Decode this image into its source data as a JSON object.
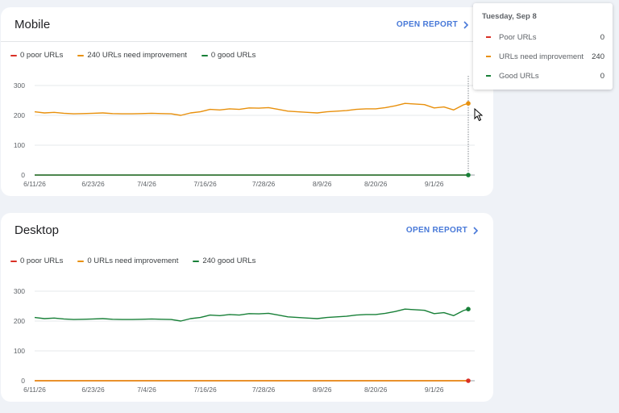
{
  "colors": {
    "poor": "#d93025",
    "needs_improvement": "#e8900c",
    "good": "#188038",
    "link": "#4778d8"
  },
  "open_report_label": "OPEN REPORT",
  "mobile": {
    "title": "Mobile",
    "legend": {
      "poor": "0 poor URLs",
      "needs_improvement": "240 URLs need improvement",
      "good": "0 good URLs"
    }
  },
  "desktop": {
    "title": "Desktop",
    "legend": {
      "poor": "0 poor URLs",
      "needs_improvement": "0 URLs need improvement",
      "good": "240 good URLs"
    }
  },
  "tooltip": {
    "date": "Tuesday, Sep 8",
    "rows": [
      {
        "label": "Poor URLs",
        "value": "0"
      },
      {
        "label": "URLs need improvement",
        "value": "240"
      },
      {
        "label": "Good URLs",
        "value": "0"
      }
    ]
  },
  "chart_data": [
    {
      "type": "line",
      "panel": "Mobile",
      "ylim": [
        0,
        300
      ],
      "yticks": [
        "300",
        "200",
        "100",
        "0"
      ],
      "xtick_labels": [
        "6/11/26",
        "6/23/26",
        "7/4/26",
        "7/16/26",
        "7/28/26",
        "8/9/26",
        "8/20/26",
        "9/1/26"
      ],
      "x": [
        "6/11/26",
        "6/13/26",
        "6/15/26",
        "6/17/26",
        "6/19/26",
        "6/21/26",
        "6/23/26",
        "6/25/26",
        "6/27/26",
        "6/29/26",
        "7/1/26",
        "7/3/26",
        "7/5/26",
        "7/7/26",
        "7/9/26",
        "7/11/26",
        "7/13/26",
        "7/15/26",
        "7/17/26",
        "7/19/26",
        "7/21/26",
        "7/23/26",
        "7/25/26",
        "7/27/26",
        "7/29/26",
        "7/31/26",
        "8/2/26",
        "8/4/26",
        "8/6/26",
        "8/8/26",
        "8/10/26",
        "8/12/26",
        "8/14/26",
        "8/16/26",
        "8/18/26",
        "8/20/26",
        "8/22/26",
        "8/24/26",
        "8/26/26",
        "8/28/26",
        "8/30/26",
        "9/1/26",
        "9/3/26",
        "9/5/26",
        "9/7/26",
        "9/8/26"
      ],
      "series": [
        {
          "name": "Poor URLs",
          "color": "#d93025",
          "values": [
            0,
            0,
            0,
            0,
            0,
            0,
            0,
            0,
            0,
            0,
            0,
            0,
            0,
            0,
            0,
            0,
            0,
            0,
            0,
            0,
            0,
            0,
            0,
            0,
            0,
            0,
            0,
            0,
            0,
            0,
            0,
            0,
            0,
            0,
            0,
            0,
            0,
            0,
            0,
            0,
            0,
            0,
            0,
            0,
            0,
            0
          ]
        },
        {
          "name": "URLs need improvement",
          "color": "#e8900c",
          "values": [
            212,
            208,
            210,
            207,
            205,
            206,
            207,
            208,
            206,
            205,
            205,
            206,
            207,
            206,
            205,
            200,
            208,
            212,
            220,
            218,
            222,
            220,
            225,
            224,
            226,
            220,
            214,
            212,
            210,
            208,
            212,
            214,
            216,
            220,
            222,
            222,
            226,
            232,
            240,
            238,
            236,
            225,
            228,
            218,
            235,
            240
          ]
        },
        {
          "name": "Good URLs",
          "color": "#188038",
          "values": [
            0,
            0,
            0,
            0,
            0,
            0,
            0,
            0,
            0,
            0,
            0,
            0,
            0,
            0,
            0,
            0,
            0,
            0,
            0,
            0,
            0,
            0,
            0,
            0,
            0,
            0,
            0,
            0,
            0,
            0,
            0,
            0,
            0,
            0,
            0,
            0,
            0,
            0,
            0,
            0,
            0,
            0,
            0,
            0,
            0,
            0
          ]
        }
      ]
    },
    {
      "type": "line",
      "panel": "Desktop",
      "ylim": [
        0,
        300
      ],
      "yticks": [
        "300",
        "200",
        "100",
        "0"
      ],
      "xtick_labels": [
        "6/11/26",
        "6/23/26",
        "7/4/26",
        "7/16/26",
        "7/28/26",
        "8/9/26",
        "8/20/26",
        "9/1/26"
      ],
      "x": [
        "6/11/26",
        "6/13/26",
        "6/15/26",
        "6/17/26",
        "6/19/26",
        "6/21/26",
        "6/23/26",
        "6/25/26",
        "6/27/26",
        "6/29/26",
        "7/1/26",
        "7/3/26",
        "7/5/26",
        "7/7/26",
        "7/9/26",
        "7/11/26",
        "7/13/26",
        "7/15/26",
        "7/17/26",
        "7/19/26",
        "7/21/26",
        "7/23/26",
        "7/25/26",
        "7/27/26",
        "7/29/26",
        "7/31/26",
        "8/2/26",
        "8/4/26",
        "8/6/26",
        "8/8/26",
        "8/10/26",
        "8/12/26",
        "8/14/26",
        "8/16/26",
        "8/18/26",
        "8/20/26",
        "8/22/26",
        "8/24/26",
        "8/26/26",
        "8/28/26",
        "8/30/26",
        "9/1/26",
        "9/3/26",
        "9/5/26",
        "9/7/26",
        "9/8/26"
      ],
      "series": [
        {
          "name": "Poor URLs",
          "color": "#d93025",
          "values": [
            0,
            0,
            0,
            0,
            0,
            0,
            0,
            0,
            0,
            0,
            0,
            0,
            0,
            0,
            0,
            0,
            0,
            0,
            0,
            0,
            0,
            0,
            0,
            0,
            0,
            0,
            0,
            0,
            0,
            0,
            0,
            0,
            0,
            0,
            0,
            0,
            0,
            0,
            0,
            0,
            0,
            0,
            0,
            0,
            0,
            0
          ]
        },
        {
          "name": "URLs need improvement",
          "color": "#e8900c",
          "values": [
            0,
            0,
            0,
            0,
            0,
            0,
            0,
            0,
            0,
            0,
            0,
            0,
            0,
            0,
            0,
            0,
            0,
            0,
            0,
            0,
            0,
            0,
            0,
            0,
            0,
            0,
            0,
            0,
            0,
            0,
            0,
            0,
            0,
            0,
            0,
            0,
            0,
            0,
            0,
            0,
            0,
            0,
            0,
            0,
            0,
            0
          ]
        },
        {
          "name": "Good URLs",
          "color": "#188038",
          "values": [
            212,
            208,
            210,
            207,
            205,
            206,
            207,
            208,
            206,
            205,
            205,
            206,
            207,
            206,
            205,
            200,
            208,
            212,
            220,
            218,
            222,
            220,
            225,
            224,
            226,
            220,
            214,
            212,
            210,
            208,
            212,
            214,
            216,
            220,
            222,
            222,
            226,
            232,
            240,
            238,
            236,
            225,
            228,
            218,
            235,
            240
          ]
        }
      ]
    }
  ]
}
